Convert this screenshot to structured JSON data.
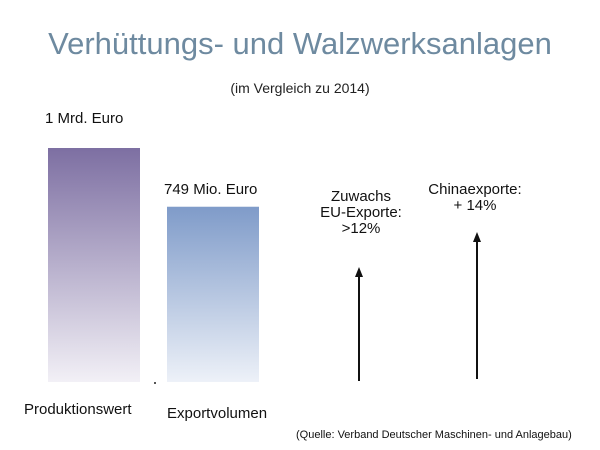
{
  "chart_data": {
    "type": "bar",
    "title": "Verhüttungs- und Walzwerksanlagen",
    "subtitle": "(im Vergleich zu 2014)",
    "categories": [
      "Produktionswert",
      "Exportvolumen"
    ],
    "values": [
      1000,
      749
    ],
    "value_labels": [
      "1 Mrd. Euro",
      "749 Mio. Euro"
    ],
    "unit": "Mio. Euro",
    "ylim": [
      0,
      1000
    ],
    "grid": false,
    "colors": {
      "bar1_top": "#7d6fa2",
      "bar1_bottom": "#f2f0f6",
      "bar2_top": "#7f9bc9",
      "bar2_bottom": "#edf1f8",
      "title": "#6e8aa0",
      "arrow": "#111111"
    },
    "annotations": [
      {
        "lines": [
          "Zuwachs",
          "EU-Exporte:",
          ">12%"
        ],
        "icon": "arrow-up-icon"
      },
      {
        "lines": [
          "Chinaexporte:",
          "+ 14%"
        ],
        "icon": "arrow-up-icon"
      }
    ]
  },
  "source": "(Quelle: Verband Deutscher Maschinen- und Anlagebau)"
}
